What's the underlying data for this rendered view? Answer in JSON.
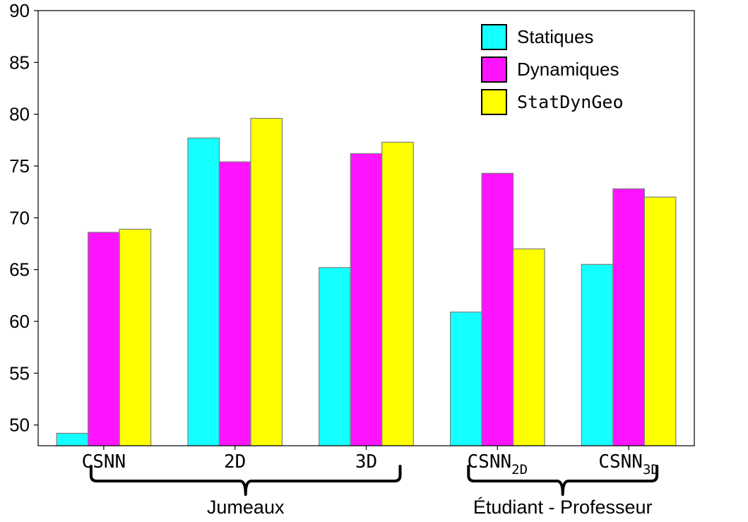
{
  "chart_data": {
    "type": "bar",
    "categories": [
      "CSNN",
      "2D",
      "3D",
      "CSNN_2D",
      "CSNN_3D"
    ],
    "category_labels": [
      {
        "main": "CSNN",
        "sub": ""
      },
      {
        "main": "2D",
        "sub": ""
      },
      {
        "main": "3D",
        "sub": ""
      },
      {
        "main": "CSNN",
        "sub": "2D"
      },
      {
        "main": "CSNN",
        "sub": "3D"
      }
    ],
    "series": [
      {
        "name": "Statiques",
        "color": "#14ffff",
        "values": [
          49.2,
          77.7,
          65.2,
          60.9,
          65.5
        ]
      },
      {
        "name": "Dynamiques",
        "color": "#ff14ff",
        "values": [
          68.6,
          75.4,
          76.2,
          74.3,
          72.8
        ]
      },
      {
        "name": "StatDynGeo",
        "color": "#ffff00",
        "values": [
          68.9,
          79.6,
          77.3,
          67.0,
          72.0
        ]
      }
    ],
    "ylim": [
      48,
      90
    ],
    "yticks": [
      50,
      55,
      60,
      65,
      70,
      75,
      80,
      85,
      90
    ],
    "groups": [
      {
        "label": "Jumeaux",
        "categories": [
          0,
          2
        ]
      },
      {
        "label": "Étudiant - Professeur",
        "categories": [
          3,
          4
        ]
      }
    ],
    "legend_position": "top-right",
    "grid": false,
    "title": "",
    "xlabel": "",
    "ylabel": ""
  }
}
